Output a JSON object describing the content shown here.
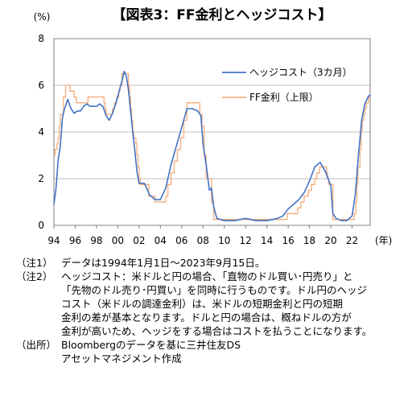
{
  "chart_data": {
    "type": "line",
    "title": "【図表3：FF金利とヘッジコスト】",
    "ylabel": "(%)",
    "xlabel": "(年)",
    "ylim": [
      0,
      8
    ],
    "xlim": [
      1994,
      2023.7
    ],
    "yticks": [
      "0",
      "2",
      "4",
      "6",
      "8"
    ],
    "xticks": [
      "94",
      "96",
      "98",
      "00",
      "02",
      "04",
      "06",
      "08",
      "10",
      "12",
      "14",
      "16",
      "18",
      "20",
      "22"
    ],
    "grid": true,
    "legend": "top-right",
    "series": [
      {
        "name": "ヘッジコスト（3カ月）",
        "color": "#4472C4",
        "points": [
          [
            1994.0,
            0.9
          ],
          [
            1994.2,
            1.6
          ],
          [
            1994.4,
            2.8
          ],
          [
            1994.6,
            3.4
          ],
          [
            1994.8,
            4.6
          ],
          [
            1995.0,
            5.0
          ],
          [
            1995.3,
            5.4
          ],
          [
            1995.6,
            5.0
          ],
          [
            1995.9,
            4.8
          ],
          [
            1996.2,
            4.9
          ],
          [
            1996.5,
            4.9
          ],
          [
            1996.8,
            5.1
          ],
          [
            1997.1,
            5.2
          ],
          [
            1997.4,
            5.1
          ],
          [
            1997.7,
            5.1
          ],
          [
            1998.0,
            5.1
          ],
          [
            1998.3,
            5.2
          ],
          [
            1998.6,
            5.1
          ],
          [
            1998.9,
            4.7
          ],
          [
            1999.2,
            4.5
          ],
          [
            1999.5,
            4.8
          ],
          [
            1999.8,
            5.2
          ],
          [
            2000.1,
            5.7
          ],
          [
            2000.4,
            6.2
          ],
          [
            2000.6,
            6.6
          ],
          [
            2000.8,
            6.4
          ],
          [
            2001.0,
            5.8
          ],
          [
            2001.2,
            4.9
          ],
          [
            2001.4,
            4.0
          ],
          [
            2001.6,
            3.2
          ],
          [
            2001.8,
            2.3
          ],
          [
            2002.0,
            1.8
          ],
          [
            2002.5,
            1.8
          ],
          [
            2003.0,
            1.3
          ],
          [
            2003.5,
            1.1
          ],
          [
            2004.0,
            1.1
          ],
          [
            2004.5,
            1.6
          ],
          [
            2005.0,
            2.6
          ],
          [
            2005.5,
            3.4
          ],
          [
            2006.0,
            4.2
          ],
          [
            2006.5,
            5.0
          ],
          [
            2007.0,
            5.0
          ],
          [
            2007.5,
            4.9
          ],
          [
            2007.8,
            4.7
          ],
          [
            2008.0,
            3.5
          ],
          [
            2008.3,
            2.6
          ],
          [
            2008.6,
            1.5
          ],
          [
            2008.8,
            1.6
          ],
          [
            2009.0,
            0.8
          ],
          [
            2009.3,
            0.3
          ],
          [
            2010.0,
            0.2
          ],
          [
            2011.0,
            0.2
          ],
          [
            2012.0,
            0.3
          ],
          [
            2013.0,
            0.2
          ],
          [
            2014.0,
            0.2
          ],
          [
            2015.0,
            0.3
          ],
          [
            2015.5,
            0.4
          ],
          [
            2016.0,
            0.7
          ],
          [
            2016.5,
            0.9
          ],
          [
            2017.0,
            1.1
          ],
          [
            2017.5,
            1.4
          ],
          [
            2018.0,
            1.9
          ],
          [
            2018.5,
            2.5
          ],
          [
            2019.0,
            2.7
          ],
          [
            2019.5,
            2.3
          ],
          [
            2020.0,
            1.7
          ],
          [
            2020.2,
            0.5
          ],
          [
            2020.5,
            0.3
          ],
          [
            2021.0,
            0.2
          ],
          [
            2021.5,
            0.2
          ],
          [
            2022.0,
            0.4
          ],
          [
            2022.3,
            1.3
          ],
          [
            2022.6,
            3.0
          ],
          [
            2022.9,
            4.5
          ],
          [
            2023.2,
            5.2
          ],
          [
            2023.5,
            5.5
          ],
          [
            2023.7,
            5.6
          ]
        ]
      },
      {
        "name": "FF金利（上限）",
        "color": "#F4B183",
        "points": [
          [
            1994.0,
            3.0
          ],
          [
            1994.1,
            3.25
          ],
          [
            1994.3,
            3.5
          ],
          [
            1994.4,
            3.75
          ],
          [
            1994.5,
            4.25
          ],
          [
            1994.6,
            4.75
          ],
          [
            1994.9,
            5.5
          ],
          [
            1995.1,
            6.0
          ],
          [
            1995.5,
            5.75
          ],
          [
            1995.9,
            5.5
          ],
          [
            1996.1,
            5.25
          ],
          [
            1997.2,
            5.5
          ],
          [
            1998.7,
            5.25
          ],
          [
            1998.8,
            5.0
          ],
          [
            1998.9,
            4.75
          ],
          [
            1999.5,
            5.0
          ],
          [
            1999.7,
            5.25
          ],
          [
            1999.9,
            5.5
          ],
          [
            2000.1,
            5.75
          ],
          [
            2000.2,
            6.0
          ],
          [
            2000.4,
            6.5
          ],
          [
            2001.0,
            6.0
          ],
          [
            2001.1,
            5.5
          ],
          [
            2001.2,
            5.0
          ],
          [
            2001.3,
            4.5
          ],
          [
            2001.4,
            4.0
          ],
          [
            2001.5,
            3.75
          ],
          [
            2001.7,
            3.5
          ],
          [
            2001.8,
            3.0
          ],
          [
            2001.9,
            2.5
          ],
          [
            2002.0,
            2.0
          ],
          [
            2002.1,
            1.75
          ],
          [
            2002.9,
            1.25
          ],
          [
            2003.5,
            1.0
          ],
          [
            2004.5,
            1.25
          ],
          [
            2004.7,
            1.75
          ],
          [
            2005.0,
            2.25
          ],
          [
            2005.3,
            2.75
          ],
          [
            2005.6,
            3.25
          ],
          [
            2005.9,
            3.75
          ],
          [
            2006.2,
            4.5
          ],
          [
            2006.5,
            5.25
          ],
          [
            2007.7,
            4.75
          ],
          [
            2007.9,
            4.25
          ],
          [
            2008.1,
            3.0
          ],
          [
            2008.3,
            2.0
          ],
          [
            2008.8,
            1.0
          ],
          [
            2009.0,
            0.25
          ],
          [
            2015.9,
            0.5
          ],
          [
            2016.9,
            0.75
          ],
          [
            2017.2,
            1.0
          ],
          [
            2017.5,
            1.25
          ],
          [
            2017.9,
            1.5
          ],
          [
            2018.2,
            1.75
          ],
          [
            2018.5,
            2.0
          ],
          [
            2018.7,
            2.25
          ],
          [
            2018.95,
            2.5
          ],
          [
            2019.6,
            2.25
          ],
          [
            2019.7,
            2.0
          ],
          [
            2019.8,
            1.75
          ],
          [
            2020.2,
            0.25
          ],
          [
            2022.2,
            0.5
          ],
          [
            2022.35,
            1.0
          ],
          [
            2022.45,
            1.75
          ],
          [
            2022.55,
            2.5
          ],
          [
            2022.75,
            3.25
          ],
          [
            2022.85,
            4.0
          ],
          [
            2022.95,
            4.5
          ],
          [
            2023.1,
            4.75
          ],
          [
            2023.2,
            5.0
          ],
          [
            2023.35,
            5.25
          ],
          [
            2023.55,
            5.5
          ],
          [
            2023.7,
            5.5
          ]
        ]
      }
    ]
  },
  "notes": [
    {
      "tag": "（注1）",
      "lines": [
        "データは1994年1月1日～2023年9月15日。"
      ]
    },
    {
      "tag": "（注2）",
      "lines": [
        "ヘッジコスト：米ドルと円の場合、「直物のドル買い･円売り」と",
        "「先物のドル売り･円買い」を同時に行うものです。ドル円のヘッジ",
        "コスト（米ドルの調達金利）は、米ドルの短期金利と円の短期",
        "金利の差が基本となります。ドルと円の場合は、概ねドルの方が",
        "金利が高いため、ヘッジをする場合はコストを払うことになります。"
      ]
    },
    {
      "tag": "（出所）",
      "lines": [
        "Bloombergのデータを基に三井住友DS",
        "アセットマネジメント作成"
      ]
    }
  ]
}
